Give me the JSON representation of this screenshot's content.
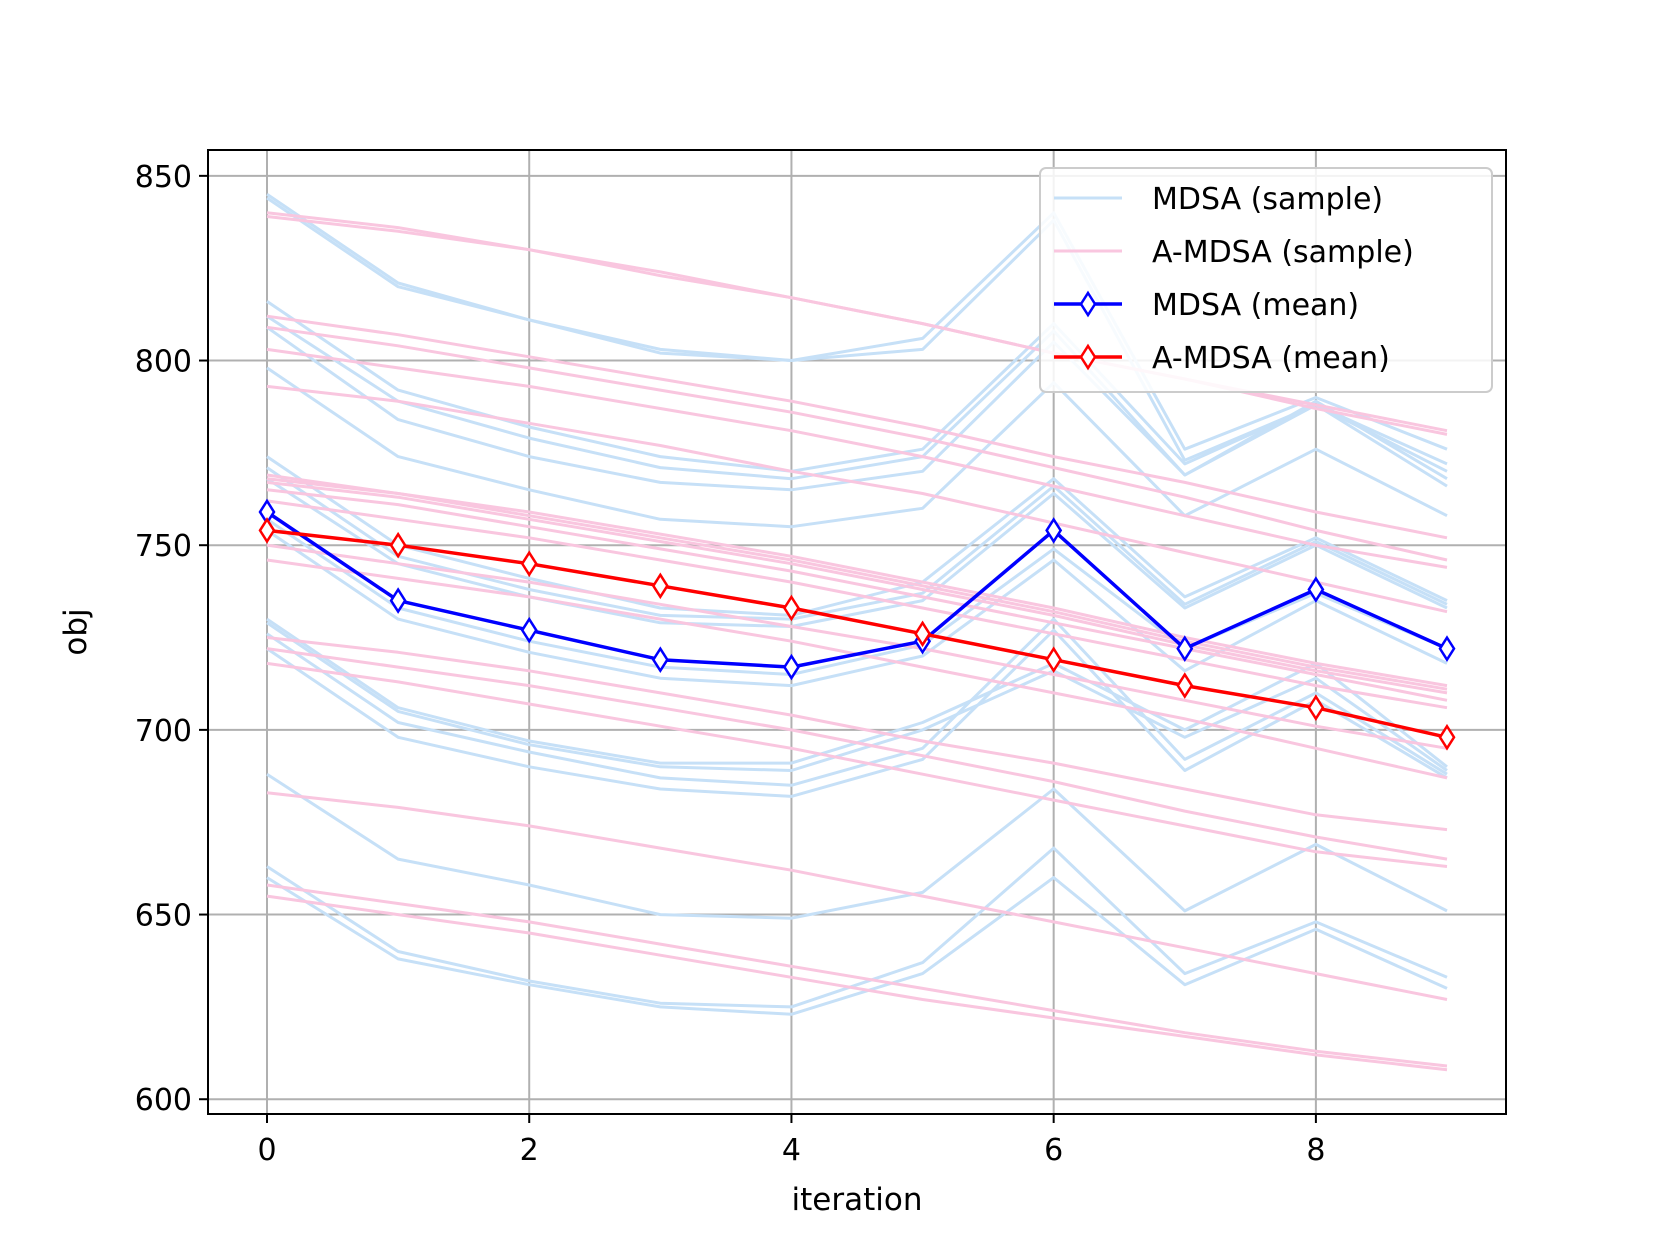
{
  "chart_data": {
    "type": "line",
    "title": "",
    "xlabel": "iteration",
    "ylabel": "obj",
    "xlim": [
      -0.45,
      9.45
    ],
    "ylim": [
      596,
      857
    ],
    "xticks": [
      0,
      2,
      4,
      6,
      8
    ],
    "yticks": [
      600,
      650,
      700,
      750,
      800,
      850
    ],
    "x": [
      0,
      1,
      2,
      3,
      4,
      5,
      6,
      7,
      8,
      9
    ],
    "grid": true,
    "legend_position": "top-right",
    "colors": {
      "mdsa_sample": "#c6e0f7",
      "amdsa_sample": "#f9c6df",
      "mdsa_mean": "#0000ff",
      "amdsa_mean": "#ff0000"
    },
    "legend": [
      {
        "key": "mdsa_sample",
        "label": "MDSA (sample)",
        "style": "line"
      },
      {
        "key": "amdsa_sample",
        "label": "A-MDSA (sample)",
        "style": "line"
      },
      {
        "key": "mdsa_mean",
        "label": "MDSA (mean)",
        "style": "marker"
      },
      {
        "key": "amdsa_mean",
        "label": "A-MDSA (mean)",
        "style": "marker"
      }
    ],
    "mdsa_samples": [
      [
        845,
        821,
        811,
        803,
        800,
        806,
        840,
        776,
        790,
        776
      ],
      [
        844,
        820,
        811,
        802,
        800,
        803,
        838,
        773,
        788,
        772
      ],
      [
        816,
        792,
        782,
        774,
        770,
        776,
        810,
        772,
        788,
        770
      ],
      [
        812,
        789,
        779,
        771,
        768,
        774,
        808,
        769,
        789,
        768
      ],
      [
        809,
        784,
        774,
        767,
        765,
        770,
        805,
        769,
        788,
        766
      ],
      [
        798,
        774,
        765,
        757,
        755,
        760,
        794,
        758,
        776,
        758
      ],
      [
        774,
        750,
        741,
        733,
        731,
        740,
        768,
        736,
        752,
        735
      ],
      [
        771,
        747,
        738,
        731,
        730,
        737,
        766,
        734,
        751,
        734
      ],
      [
        768,
        745,
        736,
        729,
        728,
        735,
        764,
        733,
        750,
        733
      ],
      [
        757,
        733,
        724,
        717,
        715,
        723,
        749,
        722,
        737,
        722
      ],
      [
        754,
        730,
        721,
        714,
        712,
        720,
        746,
        716,
        735,
        718
      ],
      [
        730,
        706,
        697,
        691,
        691,
        702,
        718,
        700,
        718,
        690
      ],
      [
        729,
        705,
        696,
        690,
        689,
        700,
        716,
        698,
        714,
        689
      ],
      [
        726,
        702,
        694,
        687,
        685,
        695,
        730,
        692,
        710,
        688
      ],
      [
        722,
        698,
        690,
        684,
        682,
        692,
        727,
        689,
        708,
        687
      ],
      [
        688,
        665,
        658,
        650,
        649,
        656,
        684,
        651,
        669,
        651
      ],
      [
        663,
        640,
        632,
        626,
        625,
        637,
        668,
        634,
        648,
        633
      ],
      [
        660,
        638,
        631,
        625,
        623,
        634,
        660,
        631,
        646,
        630
      ]
    ],
    "amdsa_samples": [
      [
        840,
        836,
        830,
        824,
        817,
        810,
        802,
        795,
        788,
        781
      ],
      [
        839,
        835,
        830,
        823,
        817,
        810,
        802,
        795,
        787,
        780
      ],
      [
        812,
        807,
        801,
        795,
        789,
        782,
        774,
        767,
        759,
        752
      ],
      [
        809,
        804,
        798,
        792,
        786,
        779,
        771,
        763,
        754,
        746
      ],
      [
        803,
        798,
        793,
        787,
        781,
        774,
        766,
        758,
        750,
        744
      ],
      [
        793,
        789,
        783,
        777,
        770,
        764,
        756,
        748,
        740,
        732
      ],
      [
        769,
        764,
        759,
        753,
        747,
        740,
        733,
        725,
        718,
        712
      ],
      [
        768,
        764,
        758,
        752,
        746,
        739,
        732,
        724,
        717,
        711
      ],
      [
        767,
        763,
        757,
        751,
        745,
        738,
        731,
        723,
        716,
        710
      ],
      [
        765,
        761,
        755,
        749,
        743,
        736,
        729,
        722,
        715,
        708
      ],
      [
        762,
        757,
        752,
        746,
        740,
        733,
        726,
        719,
        712,
        706
      ],
      [
        750,
        745,
        740,
        734,
        728,
        722,
        715,
        708,
        701,
        695
      ],
      [
        746,
        741,
        736,
        730,
        724,
        717,
        710,
        703,
        695,
        687
      ],
      [
        725,
        721,
        716,
        710,
        704,
        697,
        691,
        684,
        677,
        673
      ],
      [
        722,
        717,
        712,
        706,
        700,
        693,
        686,
        678,
        671,
        665
      ],
      [
        718,
        713,
        707,
        701,
        695,
        688,
        681,
        674,
        667,
        663
      ],
      [
        683,
        679,
        674,
        668,
        662,
        655,
        648,
        641,
        634,
        627
      ],
      [
        658,
        653,
        648,
        642,
        636,
        630,
        624,
        618,
        613,
        609
      ],
      [
        655,
        650,
        645,
        639,
        633,
        627,
        622,
        617,
        612,
        608
      ]
    ],
    "series": [
      {
        "name": "MDSA (mean)",
        "key": "mdsa_mean",
        "marker": "thin_diamond",
        "values": [
          759,
          735,
          727,
          719,
          717,
          724,
          754,
          722,
          738,
          722
        ]
      },
      {
        "name": "A-MDSA (mean)",
        "key": "amdsa_mean",
        "marker": "thin_diamond",
        "values": [
          754,
          750,
          745,
          739,
          733,
          726,
          719,
          712,
          706,
          698
        ]
      }
    ]
  }
}
